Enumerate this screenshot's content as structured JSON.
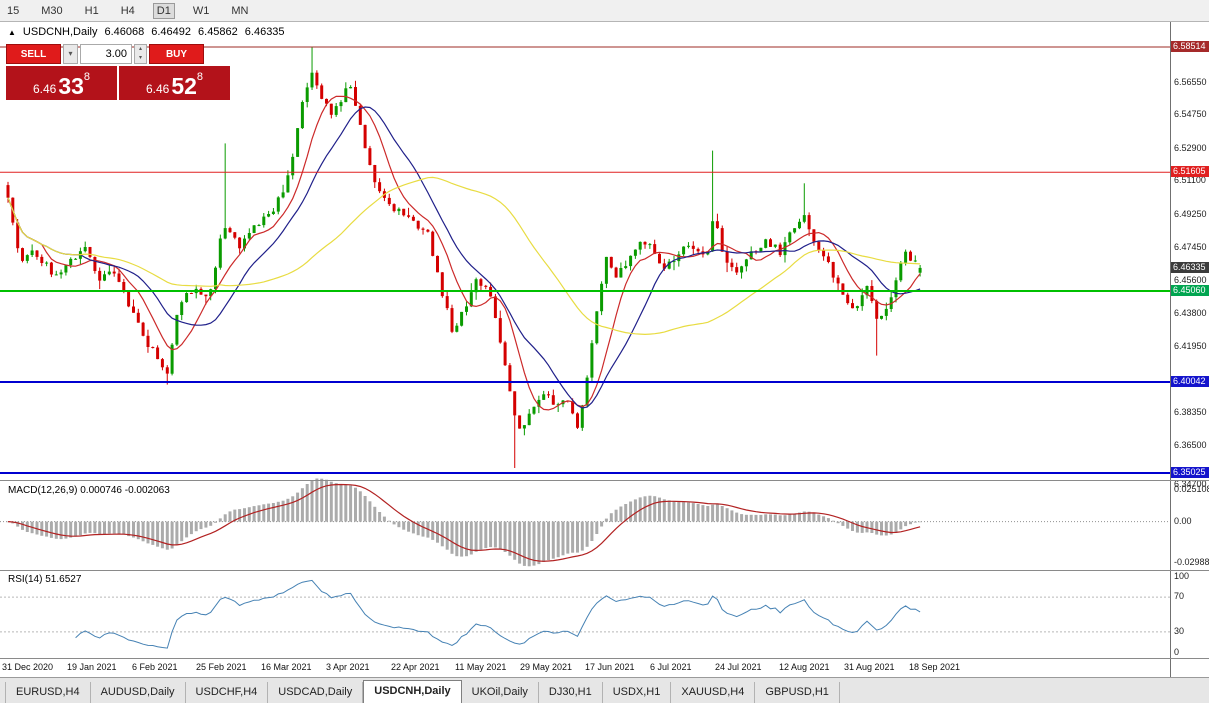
{
  "toolbar": {
    "timeframes": [
      "15",
      "M30",
      "H1",
      "H4",
      "D1",
      "W1",
      "MN"
    ],
    "active": "D1"
  },
  "icons": {
    "collapse": "▲",
    "dropdown": "▾",
    "spin_up": "▴",
    "spin_down": "▾"
  },
  "chart_header": {
    "symbol": "USDCNH,Daily",
    "open": "6.46068",
    "high": "6.46492",
    "low": "6.45862",
    "close": "6.46335"
  },
  "trade_panel": {
    "sell_label": "SELL",
    "buy_label": "BUY",
    "volume": "3.00",
    "sell_price": {
      "prefix": "6.46",
      "big": "33",
      "sup": "8"
    },
    "buy_price": {
      "prefix": "6.46",
      "big": "52",
      "sup": "8"
    }
  },
  "price_axis": {
    "ticks": [
      {
        "label": "6.56550",
        "price": 6.5655
      },
      {
        "label": "6.54750",
        "price": 6.5475
      },
      {
        "label": "6.52900",
        "price": 6.529
      },
      {
        "label": "6.51100",
        "price": 6.511
      },
      {
        "label": "6.49250",
        "price": 6.4925
      },
      {
        "label": "6.47450",
        "price": 6.4745
      },
      {
        "label": "6.45600",
        "price": 6.456
      },
      {
        "label": "6.43800",
        "price": 6.438
      },
      {
        "label": "6.41950",
        "price": 6.4195
      },
      {
        "label": "6.38350",
        "price": 6.3835
      },
      {
        "label": "6.36500",
        "price": 6.365
      },
      {
        "label": "6.34700",
        "price": 6.347,
        "y_off": 6
      }
    ]
  },
  "macd_panel": {
    "label": "MACD(12,26,9)",
    "values": "0.000746 -0.002063",
    "axis": [
      "0.025108",
      "0.00",
      "-0.02988"
    ]
  },
  "rsi_panel": {
    "label": "RSI(14)",
    "value": "51.6527",
    "axis": [
      {
        "label": "100",
        "v": 100
      },
      {
        "label": "70",
        "v": 70
      },
      {
        "label": "30",
        "v": 30
      },
      {
        "label": "0",
        "v": 0
      }
    ]
  },
  "date_axis": [
    "31 Dec 2020",
    "19 Jan 2021",
    "6 Feb 2021",
    "25 Feb 2021",
    "16 Mar 2021",
    "3 Apr 2021",
    "22 Apr 2021",
    "11 May 2021",
    "29 May 2021",
    "17 Jun 2021",
    "6 Jul 2021",
    "24 Jul 2021",
    "12 Aug 2021",
    "31 Aug 2021",
    "18 Sep 2021"
  ],
  "tabs": {
    "active_index": 4,
    "items": [
      "EURUSD,H4",
      "AUDUSD,Daily",
      "USDCHF,H4",
      "USDCAD,Daily",
      "USDCNH,Daily",
      "UKOil,Daily",
      "DJ30,H1",
      "USDX,H1",
      "XAUUSD,H4",
      "GBPUSD,H1"
    ]
  },
  "chart_data": {
    "type": "candlestick",
    "symbol": "USDCNH",
    "timeframe": "Daily",
    "candles": 190,
    "seed": 11,
    "x_range": [
      "31 Dec 2020",
      "21 Sep 2021"
    ],
    "price_path": [
      [
        0.0,
        6.502
      ],
      [
        0.013,
        6.468
      ],
      [
        0.029,
        6.472
      ],
      [
        0.051,
        6.46
      ],
      [
        0.071,
        6.468
      ],
      [
        0.084,
        6.476
      ],
      [
        0.1,
        6.458
      ],
      [
        0.117,
        6.462
      ],
      [
        0.133,
        6.442
      ],
      [
        0.149,
        6.425
      ],
      [
        0.166,
        6.412
      ],
      [
        0.174,
        6.404
      ],
      [
        0.188,
        6.445
      ],
      [
        0.204,
        6.452
      ],
      [
        0.22,
        6.446
      ],
      [
        0.237,
        6.488
      ],
      [
        0.253,
        6.475
      ],
      [
        0.269,
        6.487
      ],
      [
        0.286,
        6.492
      ],
      [
        0.302,
        6.505
      ],
      [
        0.313,
        6.528
      ],
      [
        0.324,
        6.556
      ],
      [
        0.335,
        6.572
      ],
      [
        0.342,
        6.56
      ],
      [
        0.353,
        6.548
      ],
      [
        0.364,
        6.556
      ],
      [
        0.375,
        6.566
      ],
      [
        0.386,
        6.545
      ],
      [
        0.397,
        6.518
      ],
      [
        0.411,
        6.502
      ],
      [
        0.427,
        6.495
      ],
      [
        0.444,
        6.49
      ],
      [
        0.46,
        6.482
      ],
      [
        0.477,
        6.448
      ],
      [
        0.487,
        6.428
      ],
      [
        0.498,
        6.438
      ],
      [
        0.513,
        6.458
      ],
      [
        0.526,
        6.452
      ],
      [
        0.536,
        6.432
      ],
      [
        0.547,
        6.405
      ],
      [
        0.558,
        6.375
      ],
      [
        0.569,
        6.38
      ],
      [
        0.586,
        6.396
      ],
      [
        0.6,
        6.388
      ],
      [
        0.613,
        6.392
      ],
      [
        0.624,
        6.375
      ],
      [
        0.635,
        6.402
      ],
      [
        0.645,
        6.438
      ],
      [
        0.656,
        6.468
      ],
      [
        0.667,
        6.458
      ],
      [
        0.684,
        6.472
      ],
      [
        0.7,
        6.478
      ],
      [
        0.716,
        6.462
      ],
      [
        0.733,
        6.47
      ],
      [
        0.749,
        6.477
      ],
      [
        0.766,
        6.47
      ],
      [
        0.774,
        6.492
      ],
      [
        0.785,
        6.47
      ],
      [
        0.798,
        6.462
      ],
      [
        0.815,
        6.472
      ],
      [
        0.831,
        6.478
      ],
      [
        0.847,
        6.472
      ],
      [
        0.864,
        6.488
      ],
      [
        0.872,
        6.494
      ],
      [
        0.885,
        6.478
      ],
      [
        0.902,
        6.462
      ],
      [
        0.916,
        6.448
      ],
      [
        0.929,
        6.438
      ],
      [
        0.942,
        6.452
      ],
      [
        0.955,
        6.432
      ],
      [
        0.968,
        6.445
      ],
      [
        0.981,
        6.472
      ],
      [
        0.991,
        6.468
      ],
      [
        1.0,
        6.46335
      ]
    ],
    "wick_marks": [
      {
        "f": 0.335,
        "high": 6.5851
      },
      {
        "f": 0.237,
        "high": 6.532
      },
      {
        "f": 0.174,
        "low": 6.399
      },
      {
        "f": 0.558,
        "low": 6.353
      },
      {
        "f": 0.774,
        "high": 6.528
      },
      {
        "f": 0.872,
        "high": 6.51
      },
      {
        "f": 0.955,
        "low": 6.415
      }
    ],
    "last_candle": {
      "open": 6.46068,
      "high": 6.46492,
      "low": 6.45862,
      "close": 6.46335
    },
    "levels": [
      {
        "label": "6.58514",
        "price": 6.58514,
        "color": "#9E2B25",
        "width": 1,
        "badge": "#A52A2A"
      },
      {
        "label": "6.51605",
        "price": 6.51605,
        "color": "#E02020",
        "width": 1,
        "badge": "#E02020"
      },
      {
        "label": "6.45060",
        "price": 6.4506,
        "color": "#00C000",
        "width": 2,
        "badge": "#00A550"
      },
      {
        "label": "6.40042",
        "price": 6.40042,
        "color": "#0000D0",
        "width": 2,
        "badge": "#1414CC"
      },
      {
        "label": "6.35025",
        "price": 6.35025,
        "color": "#0000D0",
        "width": 2,
        "badge": "#1414CC"
      }
    ],
    "current_badge": {
      "label": "6.46335",
      "price": 6.46335,
      "color": "#3C3C3C"
    },
    "ma": [
      {
        "period": 8,
        "color": "#CC2A2A"
      },
      {
        "period": 16,
        "color": "#20208A"
      },
      {
        "period": 45,
        "color": "#E8DC42"
      }
    ],
    "macd": {
      "fast": 12,
      "slow": 26,
      "signal": 9,
      "range": [
        -0.029885,
        0.025108
      ],
      "value": 0.000746,
      "signal_value": -0.002063
    },
    "rsi": {
      "period": 14,
      "value": 51.6527,
      "levels": [
        70,
        30
      ]
    },
    "colors": {
      "up": "#0A9B00",
      "down": "#D40000",
      "macd_hist": "#ABABAB",
      "macd_signal": "#B22222",
      "rsi_line": "#4682B4",
      "dotted": "#909090"
    }
  }
}
